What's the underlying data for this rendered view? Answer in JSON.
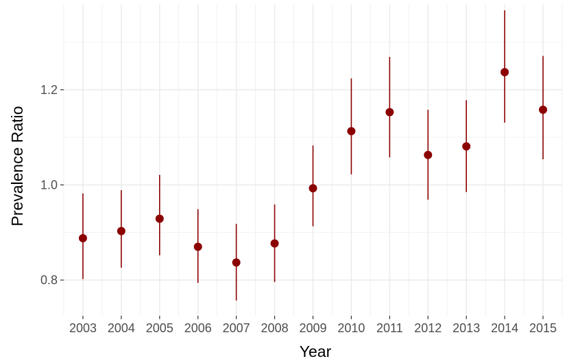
{
  "chart_data": {
    "type": "scatter",
    "title": "",
    "xlabel": "Year",
    "ylabel": "Prevalence Ratio",
    "categories": [
      "2003",
      "2004",
      "2005",
      "2006",
      "2007",
      "2008",
      "2009",
      "2010",
      "2011",
      "2012",
      "2013",
      "2014",
      "2015"
    ],
    "values": [
      0.888,
      0.903,
      0.929,
      0.87,
      0.837,
      0.877,
      0.993,
      1.113,
      1.153,
      1.063,
      1.081,
      1.237,
      1.158
    ],
    "lower": [
      0.802,
      0.826,
      0.852,
      0.794,
      0.757,
      0.796,
      0.913,
      1.022,
      1.058,
      0.969,
      0.985,
      1.131,
      1.054
    ],
    "upper": [
      0.982,
      0.989,
      1.021,
      0.949,
      0.918,
      0.959,
      1.083,
      1.224,
      1.269,
      1.158,
      1.178,
      1.367,
      1.271
    ],
    "ylim": [
      0.725,
      1.38
    ],
    "yticks": [
      "0.8",
      "1.0",
      "1.2"
    ],
    "grid": true,
    "colors": {
      "point": "#8b0000",
      "grid": "#ebebeb",
      "background": "#ffffff"
    }
  }
}
